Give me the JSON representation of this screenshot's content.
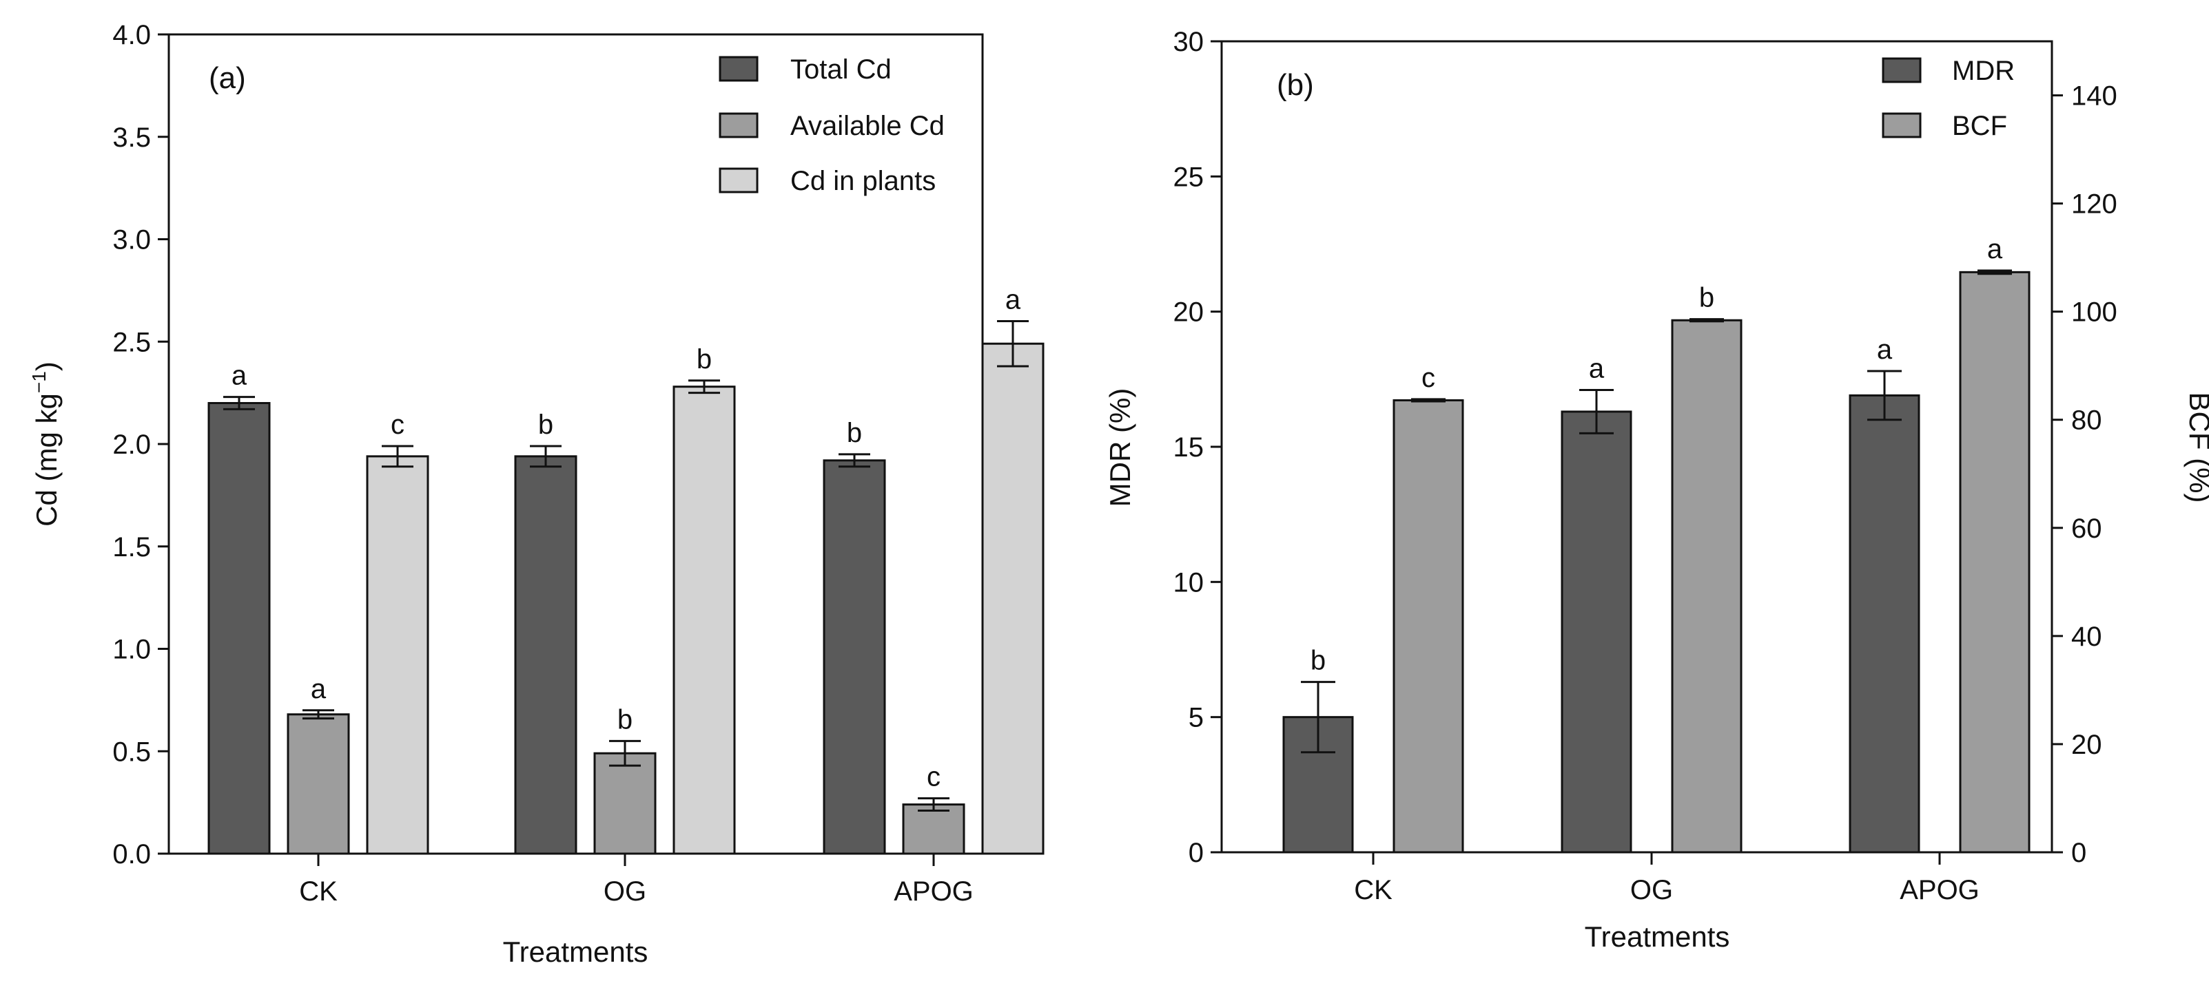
{
  "chart_data": [
    {
      "type": "bar",
      "panel_label": "(a)",
      "title": "",
      "xlabel": "Treatments",
      "ylabel_main": "Cd (mg kg",
      "ylabel_sup": "−1",
      "ylabel_close": ")",
      "ylim": [
        0,
        4.0
      ],
      "yticks": [
        "0.0",
        "0.5",
        "1.0",
        "1.5",
        "2.0",
        "2.5",
        "3.0",
        "3.5",
        "4.0"
      ],
      "categories": [
        "CK",
        "OG",
        "APOG"
      ],
      "legend_position": "top-right",
      "series": [
        {
          "name": "Total Cd",
          "color": "#5a5a5a",
          "values": [
            2.2,
            1.94,
            1.92
          ],
          "errors": [
            0.03,
            0.05,
            0.03
          ],
          "letters": [
            "a",
            "b",
            "b"
          ]
        },
        {
          "name": "Available Cd",
          "color": "#9d9d9d",
          "values": [
            0.68,
            0.49,
            0.24
          ],
          "errors": [
            0.02,
            0.06,
            0.03
          ],
          "letters": [
            "a",
            "b",
            "c"
          ]
        },
        {
          "name": "Cd in plants",
          "color": "#d3d3d3",
          "values": [
            1.94,
            2.28,
            2.49
          ],
          "errors": [
            0.05,
            0.03,
            0.11
          ],
          "letters": [
            "c",
            "b",
            "a"
          ]
        }
      ]
    },
    {
      "type": "bar",
      "panel_label": "(b)",
      "title": "",
      "xlabel": "Treatments",
      "ylabel_left": "MDR (%)",
      "ylabel_right": "BCF (%)",
      "ylim_left": [
        0,
        30
      ],
      "ylim_right": [
        0,
        150
      ],
      "yticks_left": [
        "0",
        "5",
        "10",
        "15",
        "20",
        "25",
        "30"
      ],
      "yticks_right": [
        "0",
        "20",
        "40",
        "60",
        "80",
        "100",
        "120",
        "140"
      ],
      "categories": [
        "CK",
        "OG",
        "APOG"
      ],
      "legend_position": "top-right",
      "series": [
        {
          "name": "MDR",
          "axis": "left",
          "color": "#5a5a5a",
          "values": [
            5.0,
            16.3,
            16.9
          ],
          "errors": [
            1.3,
            0.8,
            0.9
          ],
          "letters": [
            "b",
            "a",
            "a"
          ]
        },
        {
          "name": "BCF",
          "axis": "right",
          "color": "#9d9d9d",
          "values": [
            83.6,
            98.4,
            107.3
          ],
          "errors": [
            0.2,
            0.2,
            0.3
          ],
          "letters": [
            "c",
            "b",
            "a"
          ]
        }
      ]
    }
  ]
}
